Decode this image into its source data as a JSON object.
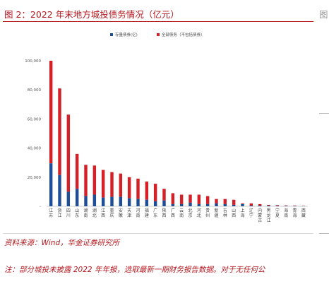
{
  "title": "图 2：2022 年末地方城投债务情况（亿元）",
  "source": "资料来源：Wind，华金证券研究所",
  "note": "注：部分城投未披露 2022 年年报，选取最新一期财务报告数据。对于无任何公",
  "side_tab": "图",
  "colors": {
    "existing": "#1f4e96",
    "total": "#d42027",
    "accent": "#b5171e"
  },
  "chart_data": {
    "type": "bar",
    "legend": [
      "存量债券(亿)",
      "全部债务（不包括债券）"
    ],
    "legend_position": "top-right",
    "ylim": [
      0,
      100000
    ],
    "yticks": [
      0,
      20000,
      40000,
      60000,
      80000,
      100000
    ],
    "ytick_labels": [
      "-",
      "20,000",
      "40,000",
      "60,000",
      "80,000",
      "100,000"
    ],
    "grid": false,
    "categories": [
      "江苏",
      "浙江",
      "四川",
      "山东",
      "湖南",
      "湖北",
      "江西",
      "重庆",
      "安徽",
      "天津",
      "河南",
      "福建",
      "广东",
      "陕西",
      "广西",
      "云南",
      "北京",
      "河北",
      "贵州",
      "新疆",
      "吉林",
      "山西",
      "上海",
      "辽宁",
      "内蒙古",
      "黑龙江",
      "宁夏",
      "海南",
      "青海",
      "西藏"
    ],
    "series": [
      {
        "name": "存量债券(亿)",
        "values": [
          29500,
          21500,
          10000,
          12000,
          7000,
          8000,
          6000,
          6500,
          6500,
          5500,
          5000,
          4500,
          3500,
          4000,
          1500,
          1500,
          2500,
          1500,
          1500,
          2000,
          1500,
          1000,
          1500,
          500,
          500,
          500,
          300,
          300,
          200,
          100
        ]
      },
      {
        "name": "全部债务（不包括债券）",
        "values": [
          100000,
          81000,
          63000,
          36000,
          28500,
          28000,
          25000,
          23500,
          22500,
          20000,
          19000,
          17000,
          15500,
          12000,
          9000,
          8000,
          8000,
          8000,
          7000,
          5000,
          5000,
          4500,
          2000,
          2000,
          1500,
          1000,
          800,
          600,
          500,
          300
        ]
      }
    ]
  }
}
